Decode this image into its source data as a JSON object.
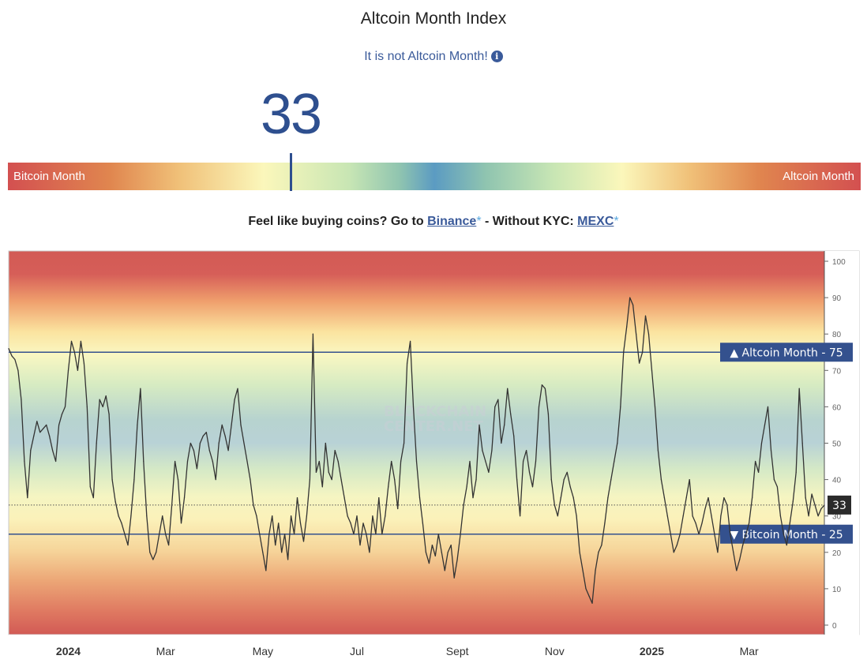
{
  "header": {
    "title": "Altcoin Month Index",
    "subtitle": "It is not Altcoin Month!",
    "info_icon": "info-circle-icon"
  },
  "gauge": {
    "value": "33",
    "left_label": "Bitcoin Month",
    "right_label": "Altcoin Month"
  },
  "promo": {
    "text1": "Feel like buying coins? Go to ",
    "link1": "Binance",
    "star1": "*",
    "text2": " - Without KYC: ",
    "link2": "MEXC",
    "star2": "*"
  },
  "watermark": [
    "BLOCKCHAIN",
    "CENTER.NET"
  ],
  "chart_data": {
    "type": "line",
    "title": "",
    "xlabel": "",
    "ylabel": "",
    "ylim": [
      0,
      100
    ],
    "yticks": [
      0,
      10,
      20,
      30,
      40,
      50,
      60,
      70,
      80,
      90,
      100
    ],
    "x_tick_labels": [
      {
        "label": "2024",
        "bold": true,
        "index": 19
      },
      {
        "label": "Mar",
        "bold": false,
        "index": 50
      },
      {
        "label": "May",
        "bold": false,
        "index": 81
      },
      {
        "label": "Jul",
        "bold": false,
        "index": 111
      },
      {
        "label": "Sept",
        "bold": false,
        "index": 143
      },
      {
        "label": "Nov",
        "bold": false,
        "index": 174
      },
      {
        "label": "2025",
        "bold": true,
        "index": 205
      },
      {
        "label": "Mar",
        "bold": false,
        "index": 236
      }
    ],
    "reference_lines": [
      {
        "label": "Altcoin Month - 75",
        "value": 75,
        "marker": "▲"
      },
      {
        "label": "Bitcoin Month - 25",
        "value": 25,
        "marker": "▼"
      }
    ],
    "current": {
      "label": "33",
      "value": 33
    },
    "series": [
      {
        "values": [
          76,
          74,
          73,
          70,
          62,
          45,
          35,
          48,
          52,
          56,
          53,
          54,
          55,
          52,
          48,
          45,
          55,
          58,
          60,
          70,
          78,
          75,
          70,
          78,
          72,
          60,
          38,
          35,
          50,
          62,
          60,
          63,
          58,
          40,
          34,
          30,
          28,
          25,
          22,
          30,
          40,
          55,
          65,
          45,
          30,
          20,
          18,
          20,
          25,
          30,
          25,
          22,
          33,
          45,
          40,
          28,
          35,
          45,
          50,
          48,
          43,
          50,
          52,
          53,
          48,
          45,
          40,
          50,
          55,
          52,
          48,
          55,
          62,
          65,
          55,
          50,
          45,
          40,
          33,
          30,
          25,
          20,
          15,
          25,
          30,
          22,
          28,
          20,
          25,
          18,
          30,
          25,
          35,
          28,
          23,
          30,
          40,
          80,
          42,
          45,
          38,
          50,
          42,
          40,
          48,
          45,
          40,
          35,
          30,
          28,
          25,
          30,
          22,
          28,
          25,
          20,
          30,
          25,
          35,
          25,
          30,
          38,
          45,
          40,
          32,
          45,
          50,
          72,
          78,
          60,
          45,
          35,
          28,
          20,
          17,
          22,
          19,
          25,
          20,
          15,
          20,
          22,
          13,
          18,
          25,
          33,
          38,
          45,
          35,
          40,
          55,
          48,
          45,
          42,
          48,
          60,
          62,
          50,
          55,
          65,
          58,
          52,
          40,
          30,
          45,
          48,
          42,
          38,
          45,
          60,
          66,
          65,
          58,
          40,
          33,
          30,
          35,
          40,
          42,
          38,
          35,
          30,
          20,
          15,
          10,
          8,
          6,
          15,
          20,
          22,
          28,
          35,
          40,
          45,
          50,
          60,
          75,
          82,
          90,
          88,
          80,
          72,
          75,
          85,
          80,
          70,
          60,
          48,
          40,
          35,
          30,
          25,
          20,
          22,
          25,
          30,
          35,
          40,
          30,
          28,
          25,
          28,
          32,
          35,
          30,
          25,
          20,
          30,
          35,
          33,
          25,
          20,
          15,
          18,
          22,
          25,
          28,
          35,
          45,
          42,
          50,
          55,
          60,
          48,
          40,
          38,
          30,
          25,
          22,
          28,
          34,
          42,
          65,
          50,
          35,
          30,
          36,
          33,
          30,
          32,
          33
        ]
      }
    ]
  }
}
